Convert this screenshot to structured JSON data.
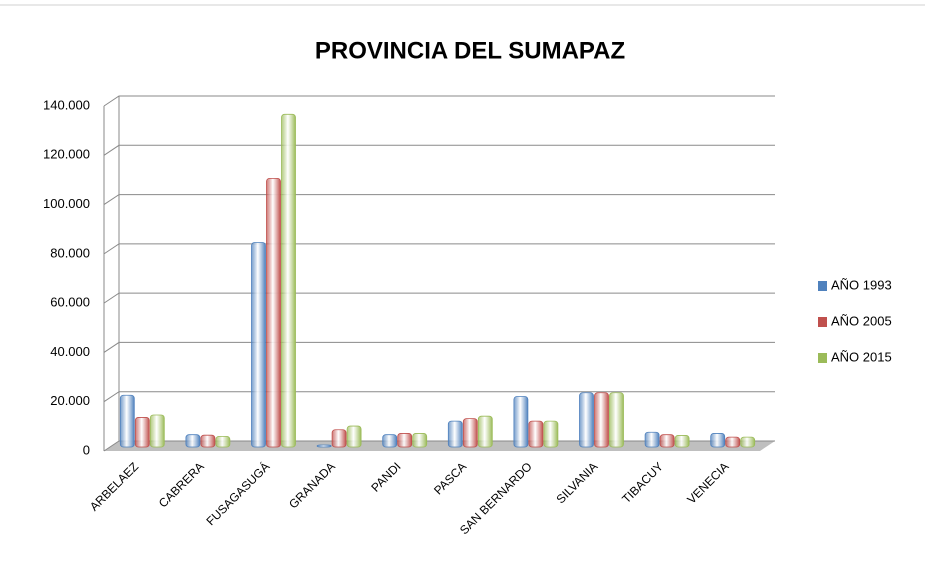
{
  "chart_data": {
    "type": "bar",
    "title": "PROVINCIA DEL SUMAPAZ",
    "categories": [
      "ARBELAEZ",
      "CABRERA",
      "FUSAGASUGÁ",
      "GRANADA",
      "PANDI",
      "PASCA",
      "SAN BERNARDO",
      "SILVANIA",
      "TIBACUY",
      "VENECIA"
    ],
    "series": [
      {
        "name": "AÑO 1993",
        "color": "#4f81bd",
        "values": [
          21000,
          5000,
          83000,
          800,
          5000,
          10500,
          20500,
          22000,
          6000,
          5500
        ]
      },
      {
        "name": "AÑO 2005",
        "color": "#c0504d",
        "values": [
          12000,
          4800,
          109000,
          7000,
          5500,
          11500,
          10500,
          22000,
          5000,
          4000
        ]
      },
      {
        "name": "AÑO 2015",
        "color": "#9bbb59",
        "values": [
          13000,
          4300,
          135000,
          8500,
          5500,
          12500,
          10500,
          22000,
          4700,
          4000
        ]
      }
    ],
    "ylim": [
      0,
      140000
    ],
    "yticks": [
      0,
      {
        "value": 20000,
        "label": "20.000"
      },
      {
        "value": 40000,
        "label": "40.000"
      },
      {
        "value": 60000,
        "label": "60.000"
      },
      {
        "value": 80000,
        "label": "80.000"
      },
      {
        "value": 100000,
        "label": "100.000"
      },
      {
        "value": 120000,
        "label": "120.000"
      },
      {
        "value": 140000,
        "label": "140.000"
      }
    ],
    "grid": true,
    "legend": "right"
  }
}
